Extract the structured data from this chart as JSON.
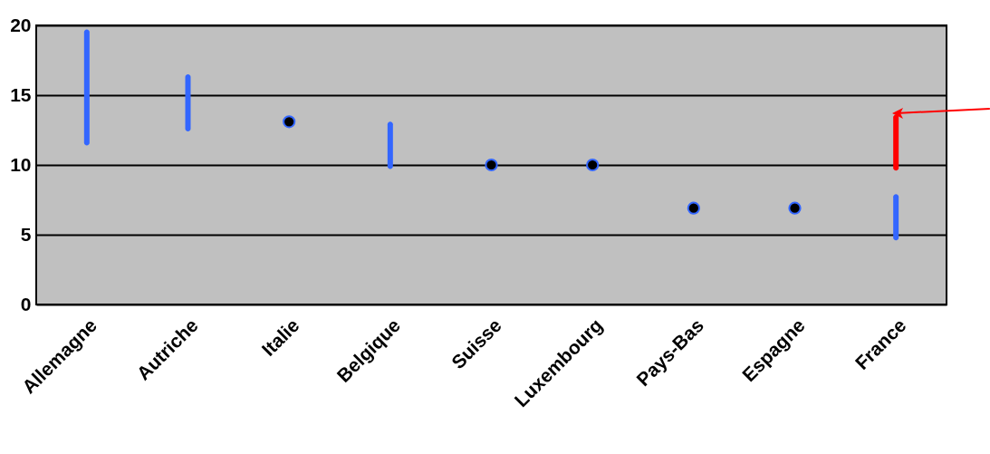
{
  "chart_data": {
    "type": "bar",
    "categories": [
      "Allemagne",
      "Autriche",
      "Italie",
      "Belgique",
      "Suisse",
      "Luxembourg",
      "Pays-Bas",
      "Espagne",
      "France"
    ],
    "ylim": [
      0,
      20
    ],
    "yticks": [
      0,
      5,
      10,
      15,
      20
    ],
    "grid": "y",
    "marker": "circle",
    "series": [
      {
        "color": "#3366ff",
        "base": [
          11.4,
          12.4,
          null,
          9.7,
          null,
          null,
          null,
          null,
          4.6
        ],
        "values": [
          8.3,
          4.1,
          null,
          3.4,
          null,
          null,
          null,
          null,
          3.3
        ]
      },
      {
        "type": "scatter",
        "color": "#000000",
        "values": [
          null,
          null,
          13.1,
          null,
          10,
          10,
          6.9,
          6.9,
          null
        ]
      },
      {
        "color": "#ff0000",
        "base": [
          null,
          null,
          null,
          null,
          null,
          null,
          null,
          null,
          9.6
        ],
        "values": [
          null,
          null,
          null,
          null,
          null,
          null,
          null,
          null,
          4.0
        ]
      }
    ]
  }
}
